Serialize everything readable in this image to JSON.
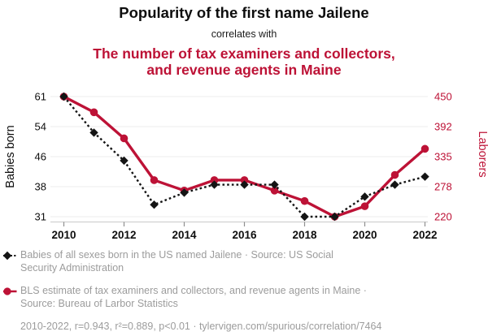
{
  "header": {
    "title": "Popularity of the first name Jailene",
    "subtitle": "correlates with",
    "correlate_title_lines": [
      "The number of tax examiners and collectors,",
      "and revenue agents in Maine"
    ]
  },
  "colors": {
    "accent_red": "#bd1236",
    "series_black": "#141414",
    "muted_gray": "#9c9c9c",
    "gridline_gray": "#ececec",
    "axisline_gray": "#c9c9c9",
    "tickmark_gray": "#8f8f8f"
  },
  "legend": {
    "entries": [
      {
        "marker_icon": "black-diamond-dashed-line",
        "lines": [
          "Babies of all sexes born in the US named Jailene · Source: US Social",
          "Security Administration"
        ]
      },
      {
        "marker_icon": "red-circle-solid-line",
        "lines": [
          "BLS estimate of tax examiners and collectors, and revenue agents in Maine ·",
          "Source: Bureau of Larbor Statistics"
        ]
      }
    ],
    "footnote": "2010-2022, r=0.943, r²=0.889, p<0.01 · tylervigen.com/spurious/correlation/7464"
  },
  "chart_data": {
    "type": "line",
    "x": [
      2010,
      2011,
      2012,
      2013,
      2014,
      2015,
      2016,
      2017,
      2018,
      2019,
      2020,
      2021,
      2022
    ],
    "x_tick_labels": [
      "2010",
      "2012",
      "2014",
      "2016",
      "2018",
      "2020",
      "2022"
    ],
    "left_axis": {
      "label": "Babies born",
      "tick_labels": [
        "61",
        "54",
        "46",
        "38",
        "31"
      ],
      "range": [
        31,
        61
      ]
    },
    "right_axis": {
      "label": "Laborers",
      "tick_labels": [
        "450",
        "392",
        "335",
        "278",
        "220"
      ],
      "range": [
        220,
        450
      ]
    },
    "series": [
      {
        "name": "Babies of all sexes born in the US named Jailene",
        "axis": "left",
        "style": "dashed",
        "marker": "diamond",
        "color": "#141414",
        "values": [
          61,
          52,
          45,
          34,
          37,
          39,
          39,
          39,
          31,
          31,
          36,
          39,
          41
        ]
      },
      {
        "name": "BLS estimate of tax examiners and collectors, and revenue agents in Maine",
        "axis": "right",
        "style": "solid",
        "marker": "circle",
        "color": "#bd1236",
        "values": [
          450,
          420,
          370,
          290,
          270,
          290,
          290,
          270,
          250,
          220,
          240,
          300,
          350
        ]
      }
    ],
    "grid": true,
    "legend_position": "bottom"
  }
}
